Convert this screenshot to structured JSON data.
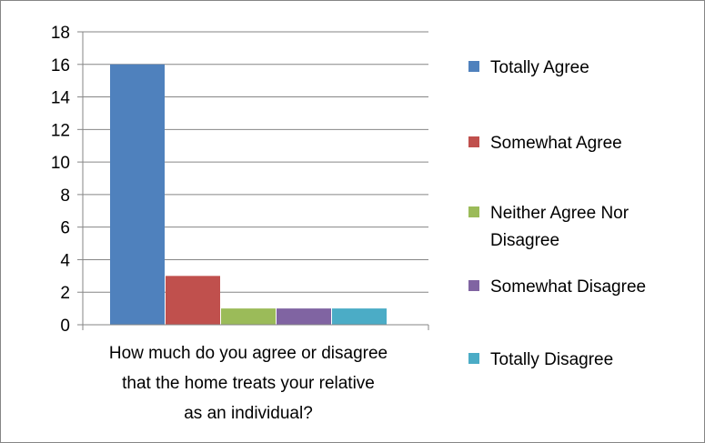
{
  "chart_data": {
    "type": "bar",
    "xlabel_lines": [
      "How much do you agree or disagree",
      "that the home treats your relative",
      "as an individual?"
    ],
    "ylim": [
      0,
      18
    ],
    "yticks": [
      0,
      2,
      4,
      6,
      8,
      10,
      12,
      14,
      16,
      18
    ],
    "grid": true,
    "legend_position": "right",
    "series": [
      {
        "name": "Totally Agree",
        "value": 16,
        "color": "#4F81BD"
      },
      {
        "name": "Somewhat Agree",
        "value": 3,
        "color": "#C0504D"
      },
      {
        "name": "Neither Agree Nor Disagree",
        "value": 1,
        "color": "#9BBB59"
      },
      {
        "name": "Somewhat Disagree",
        "value": 1,
        "color": "#8064A2"
      },
      {
        "name": "Totally Disagree",
        "value": 1,
        "color": "#4BACC6"
      }
    ]
  }
}
